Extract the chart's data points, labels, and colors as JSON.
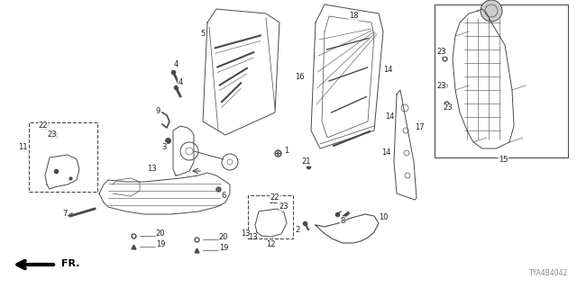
{
  "bg_color": "#ffffff",
  "line_color": "#4a4a4a",
  "text_color": "#222222",
  "diagram_id": "TYA4B4042",
  "figsize": [
    6.4,
    3.2
  ],
  "dpi": 100
}
